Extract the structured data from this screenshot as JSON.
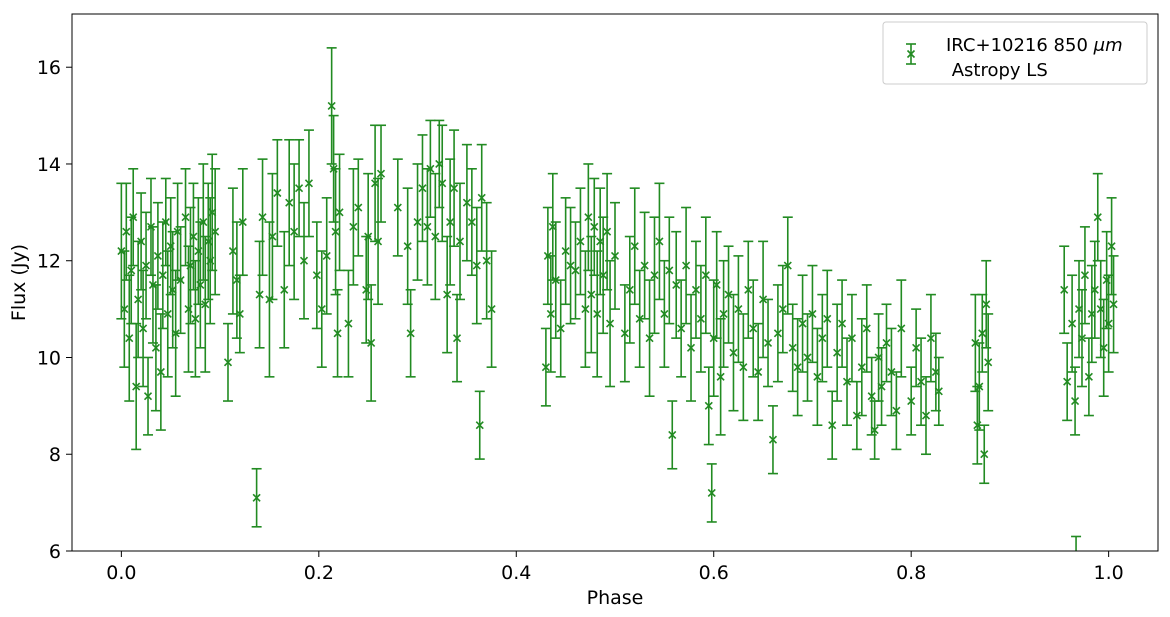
{
  "chart_data": {
    "type": "scatter",
    "title": "",
    "xlabel": "Phase",
    "ylabel": "Flux (Jy)",
    "xlim": [
      -0.05,
      1.05
    ],
    "ylim": [
      6.0,
      17.1
    ],
    "x_ticks": [
      0.0,
      0.2,
      0.4,
      0.6,
      0.8,
      1.0
    ],
    "x_tick_labels": [
      "0.0",
      "0.2",
      "0.4",
      "0.6",
      "0.8",
      "1.0"
    ],
    "y_ticks": [
      6,
      8,
      10,
      12,
      14,
      16
    ],
    "y_tick_labels": [
      "6",
      "8",
      "10",
      "12",
      "14",
      "16"
    ],
    "grid": false,
    "legend": {
      "position": "top-right",
      "line1": "IRC+10216 850 ",
      "line1_unit": "μm",
      "line2": " Astropy LS"
    },
    "marker": "x",
    "error_bars": true,
    "color": "#228b22",
    "series": [
      {
        "name": "IRC+10216 850 μm Astropy LS",
        "points": [
          [
            0.0,
            12.2,
            1.4
          ],
          [
            0.003,
            11.0,
            1.2
          ],
          [
            0.005,
            12.6,
            1.0
          ],
          [
            0.008,
            10.4,
            1.3
          ],
          [
            0.01,
            11.8,
            1.1
          ],
          [
            0.012,
            12.9,
            1.0
          ],
          [
            0.015,
            9.4,
            1.3
          ],
          [
            0.017,
            11.2,
            1.2
          ],
          [
            0.02,
            12.4,
            1.0
          ],
          [
            0.022,
            10.6,
            1.2
          ],
          [
            0.025,
            11.9,
            1.1
          ],
          [
            0.027,
            9.2,
            0.8
          ],
          [
            0.03,
            12.7,
            1.0
          ],
          [
            0.032,
            11.5,
            1.2
          ],
          [
            0.035,
            10.2,
            1.3
          ],
          [
            0.037,
            12.1,
            1.1
          ],
          [
            0.04,
            9.7,
            1.2
          ],
          [
            0.042,
            11.7,
            1.1
          ],
          [
            0.045,
            12.8,
            0.9
          ],
          [
            0.047,
            10.9,
            1.3
          ],
          [
            0.05,
            12.3,
            1.0
          ],
          [
            0.052,
            11.4,
            1.2
          ],
          [
            0.055,
            10.5,
            1.3
          ],
          [
            0.057,
            12.6,
            1.0
          ],
          [
            0.06,
            11.6,
            1.1
          ],
          [
            0.065,
            12.9,
            1.0
          ],
          [
            0.068,
            11.0,
            1.3
          ],
          [
            0.07,
            11.9,
            1.2
          ],
          [
            0.073,
            12.5,
            1.1
          ],
          [
            0.075,
            10.8,
            1.2
          ],
          [
            0.078,
            12.2,
            1.1
          ],
          [
            0.08,
            11.5,
            1.3
          ],
          [
            0.083,
            12.8,
            1.2
          ],
          [
            0.085,
            11.1,
            1.4
          ],
          [
            0.088,
            12.4,
            1.2
          ],
          [
            0.09,
            12.0,
            1.3
          ],
          [
            0.092,
            13.0,
            1.2
          ],
          [
            0.095,
            12.6,
            1.3
          ],
          [
            0.108,
            9.9,
            0.8
          ],
          [
            0.113,
            12.2,
            1.3
          ],
          [
            0.117,
            11.6,
            1.2
          ],
          [
            0.12,
            10.9,
            0.8
          ],
          [
            0.123,
            12.8,
            1.1
          ],
          [
            0.137,
            7.1,
            0.6
          ],
          [
            0.14,
            11.3,
            1.1
          ],
          [
            0.143,
            12.9,
            1.2
          ],
          [
            0.15,
            11.2,
            1.6
          ],
          [
            0.153,
            12.5,
            1.3
          ],
          [
            0.158,
            13.4,
            1.1
          ],
          [
            0.165,
            11.4,
            1.2
          ],
          [
            0.17,
            13.2,
            1.3
          ],
          [
            0.175,
            12.6,
            1.4
          ],
          [
            0.18,
            13.5,
            1.0
          ],
          [
            0.185,
            12.0,
            1.2
          ],
          [
            0.19,
            13.6,
            1.1
          ],
          [
            0.198,
            11.7,
            1.1
          ],
          [
            0.203,
            11.0,
            1.2
          ],
          [
            0.208,
            12.1,
            1.2
          ],
          [
            0.213,
            15.2,
            1.2
          ],
          [
            0.215,
            13.9,
            1.1
          ],
          [
            0.217,
            12.6,
            1.3
          ],
          [
            0.219,
            10.5,
            0.9
          ],
          [
            0.221,
            13.0,
            1.2
          ],
          [
            0.23,
            10.7,
            1.1
          ],
          [
            0.235,
            12.7,
            1.2
          ],
          [
            0.24,
            13.1,
            1.0
          ],
          [
            0.248,
            11.4,
            1.1
          ],
          [
            0.25,
            12.5,
            1.3
          ],
          [
            0.253,
            10.3,
            1.2
          ],
          [
            0.257,
            13.6,
            1.2
          ],
          [
            0.26,
            12.4,
            1.3
          ],
          [
            0.263,
            13.8,
            1.0
          ],
          [
            0.28,
            13.1,
            1.0
          ],
          [
            0.29,
            12.3,
            1.2
          ],
          [
            0.293,
            10.5,
            0.9
          ],
          [
            0.3,
            12.8,
            1.2
          ],
          [
            0.305,
            13.5,
            1.1
          ],
          [
            0.31,
            12.7,
            1.2
          ],
          [
            0.313,
            13.9,
            1.0
          ],
          [
            0.318,
            12.5,
            1.3
          ],
          [
            0.322,
            14.0,
            0.9
          ],
          [
            0.325,
            13.6,
            1.2
          ],
          [
            0.33,
            11.3,
            1.2
          ],
          [
            0.333,
            12.8,
            1.3
          ],
          [
            0.337,
            13.5,
            1.2
          ],
          [
            0.34,
            10.4,
            0.9
          ],
          [
            0.343,
            12.4,
            1.2
          ],
          [
            0.35,
            13.2,
            1.2
          ],
          [
            0.355,
            12.8,
            1.1
          ],
          [
            0.36,
            11.9,
            1.2
          ],
          [
            0.363,
            8.6,
            0.7
          ],
          [
            0.365,
            13.3,
            1.1
          ],
          [
            0.37,
            12.0,
            1.2
          ],
          [
            0.375,
            11.0,
            1.2
          ],
          [
            0.43,
            9.8,
            0.8
          ],
          [
            0.432,
            12.1,
            1.0
          ],
          [
            0.435,
            10.9,
            1.2
          ],
          [
            0.437,
            12.7,
            1.1
          ],
          [
            0.44,
            11.6,
            1.2
          ],
          [
            0.445,
            10.6,
            1.0
          ],
          [
            0.45,
            12.2,
            1.1
          ],
          [
            0.455,
            11.9,
            1.2
          ],
          [
            0.46,
            11.8,
            1.0
          ],
          [
            0.465,
            12.4,
            1.1
          ],
          [
            0.47,
            11.0,
            1.2
          ],
          [
            0.473,
            12.9,
            1.1
          ],
          [
            0.476,
            11.3,
            1.2
          ],
          [
            0.479,
            12.7,
            1.0
          ],
          [
            0.482,
            10.9,
            1.3
          ],
          [
            0.485,
            12.4,
            1.1
          ],
          [
            0.488,
            11.7,
            1.2
          ],
          [
            0.492,
            12.6,
            1.2
          ],
          [
            0.495,
            10.7,
            1.3
          ],
          [
            0.5,
            12.1,
            1.1
          ],
          [
            0.51,
            10.5,
            1.0
          ],
          [
            0.515,
            11.4,
            1.1
          ],
          [
            0.52,
            12.3,
            1.2
          ],
          [
            0.525,
            10.8,
            1.0
          ],
          [
            0.53,
            11.9,
            1.1
          ],
          [
            0.535,
            10.4,
            1.2
          ],
          [
            0.54,
            11.7,
            1.2
          ],
          [
            0.545,
            12.4,
            1.2
          ],
          [
            0.55,
            10.9,
            1.1
          ],
          [
            0.555,
            11.8,
            1.1
          ],
          [
            0.558,
            8.4,
            0.7
          ],
          [
            0.562,
            11.5,
            1.1
          ],
          [
            0.567,
            10.6,
            1.0
          ],
          [
            0.572,
            11.9,
            1.2
          ],
          [
            0.577,
            10.2,
            1.1
          ],
          [
            0.582,
            11.4,
            1.0
          ],
          [
            0.587,
            10.8,
            1.1
          ],
          [
            0.592,
            11.7,
            1.2
          ],
          [
            0.595,
            9.0,
            0.8
          ],
          [
            0.598,
            7.2,
            0.6
          ],
          [
            0.6,
            10.4,
            1.2
          ],
          [
            0.603,
            11.5,
            1.1
          ],
          [
            0.607,
            9.6,
            1.2
          ],
          [
            0.61,
            10.9,
            1.1
          ],
          [
            0.615,
            11.3,
            1.0
          ],
          [
            0.62,
            10.1,
            1.2
          ],
          [
            0.625,
            11.0,
            1.1
          ],
          [
            0.63,
            9.8,
            1.1
          ],
          [
            0.635,
            11.4,
            1.0
          ],
          [
            0.64,
            10.6,
            1.0
          ],
          [
            0.645,
            9.7,
            1.0
          ],
          [
            0.65,
            11.2,
            1.2
          ],
          [
            0.655,
            10.3,
            0.9
          ],
          [
            0.66,
            8.3,
            0.7
          ],
          [
            0.665,
            10.5,
            1.0
          ],
          [
            0.67,
            11.0,
            0.9
          ],
          [
            0.675,
            11.9,
            1.0
          ],
          [
            0.68,
            10.2,
            0.9
          ],
          [
            0.685,
            9.8,
            1.0
          ],
          [
            0.69,
            10.7,
            1.0
          ],
          [
            0.695,
            10.0,
            0.9
          ],
          [
            0.7,
            10.9,
            1.0
          ],
          [
            0.705,
            9.6,
            1.0
          ],
          [
            0.71,
            10.4,
            0.9
          ],
          [
            0.715,
            10.8,
            1.0
          ],
          [
            0.72,
            8.6,
            0.7
          ],
          [
            0.725,
            10.1,
            1.0
          ],
          [
            0.73,
            10.7,
            0.9
          ],
          [
            0.735,
            9.5,
            0.9
          ],
          [
            0.74,
            10.4,
            0.9
          ],
          [
            0.745,
            8.8,
            0.7
          ],
          [
            0.75,
            9.8,
            1.0
          ],
          [
            0.755,
            10.6,
            0.9
          ],
          [
            0.76,
            9.2,
            0.8
          ],
          [
            0.763,
            8.5,
            0.6
          ],
          [
            0.767,
            10.0,
            0.9
          ],
          [
            0.77,
            9.4,
            0.8
          ],
          [
            0.775,
            10.3,
            0.8
          ],
          [
            0.78,
            9.7,
            0.9
          ],
          [
            0.785,
            8.9,
            0.8
          ],
          [
            0.79,
            10.6,
            1.0
          ],
          [
            0.8,
            9.1,
            0.7
          ],
          [
            0.805,
            10.2,
            0.8
          ],
          [
            0.81,
            9.5,
            0.9
          ],
          [
            0.815,
            8.8,
            0.8
          ],
          [
            0.82,
            10.4,
            0.9
          ],
          [
            0.825,
            9.7,
            0.8
          ],
          [
            0.828,
            9.3,
            0.7
          ],
          [
            0.865,
            10.3,
            1.0
          ],
          [
            0.867,
            8.6,
            0.8
          ],
          [
            0.869,
            9.4,
            0.9
          ],
          [
            0.872,
            10.5,
            0.8
          ],
          [
            0.874,
            8.0,
            0.6
          ],
          [
            0.876,
            11.1,
            0.9
          ],
          [
            0.878,
            9.9,
            1.0
          ],
          [
            0.955,
            11.4,
            0.9
          ],
          [
            0.958,
            9.5,
            0.8
          ],
          [
            0.963,
            10.7,
            1.0
          ],
          [
            0.966,
            9.1,
            0.7
          ],
          [
            0.967,
            5.9,
            0.4
          ],
          [
            0.97,
            11.0,
            1.0
          ],
          [
            0.973,
            10.4,
            1.0
          ],
          [
            0.976,
            11.7,
            1.0
          ],
          [
            0.98,
            9.6,
            0.8
          ],
          [
            0.983,
            10.9,
            1.0
          ],
          [
            0.986,
            11.4,
            1.0
          ],
          [
            0.989,
            12.9,
            0.9
          ],
          [
            0.992,
            11.0,
            1.0
          ],
          [
            0.995,
            10.2,
            1.0
          ],
          [
            0.998,
            11.6,
            1.0
          ],
          [
            1.0,
            10.7,
            1.0
          ],
          [
            1.003,
            12.3,
            1.0
          ],
          [
            1.005,
            11.1,
            1.0
          ]
        ]
      }
    ]
  }
}
